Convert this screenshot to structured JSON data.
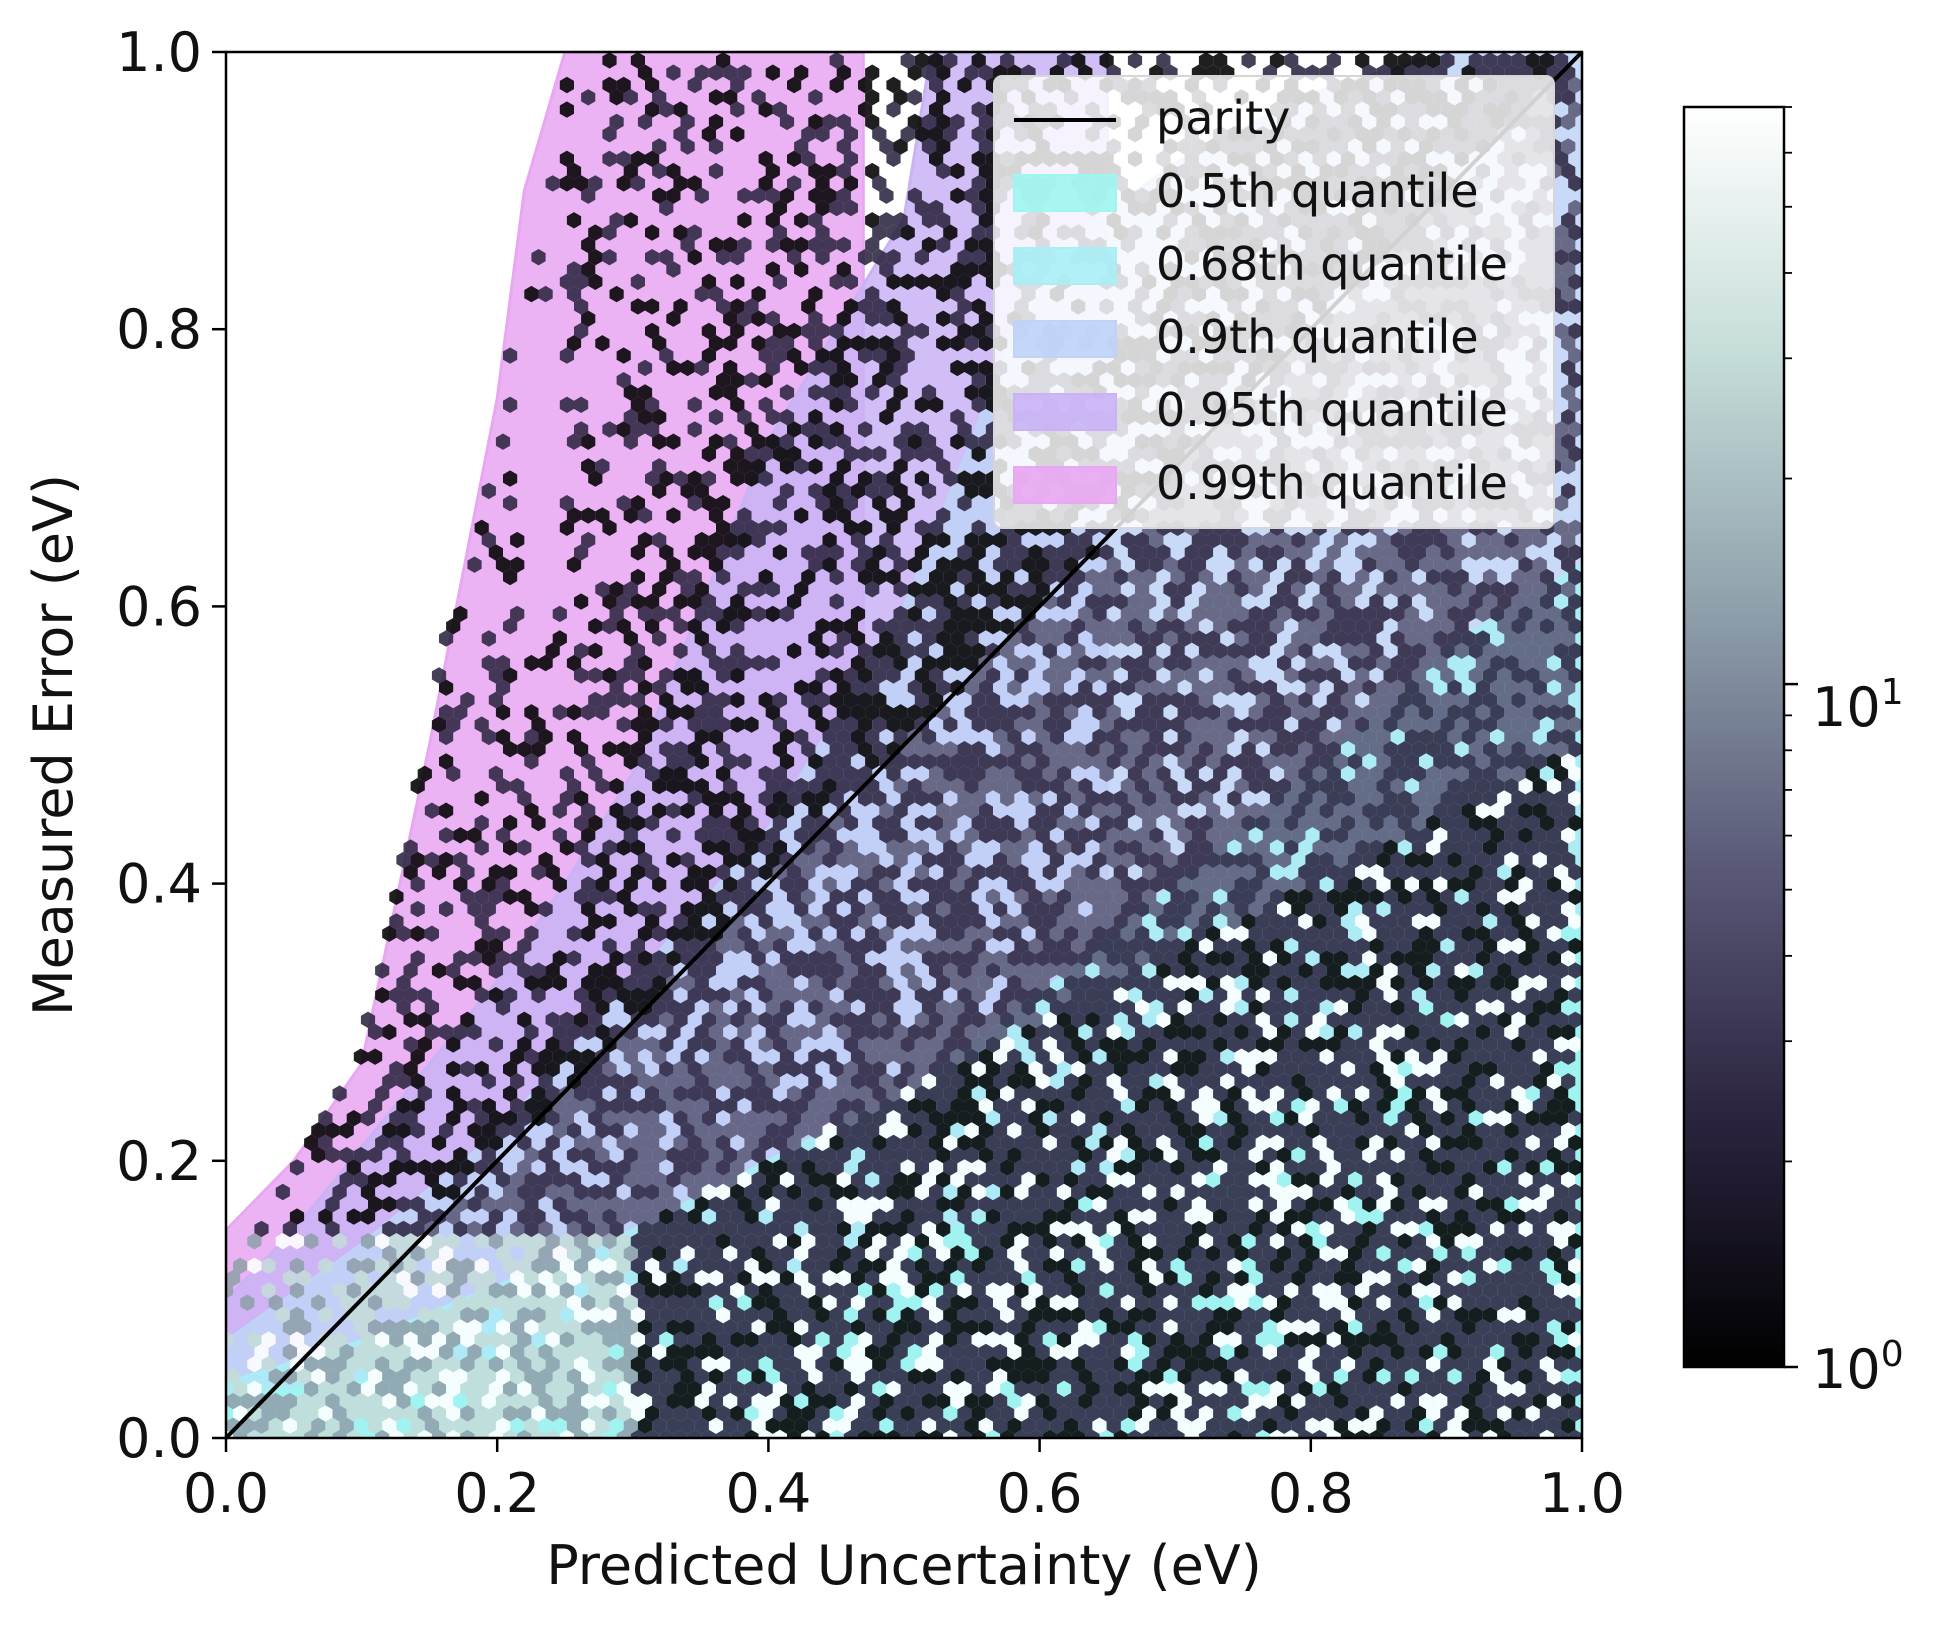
{
  "chart_data": {
    "type": "hexbin",
    "title": "",
    "xlabel": "Predicted Uncertainty (eV)",
    "ylabel": "Measured Error (eV)",
    "xlim": [
      0.0,
      1.0
    ],
    "ylim": [
      0.0,
      1.0
    ],
    "x_ticks": [
      "0.0",
      "0.2",
      "0.4",
      "0.6",
      "0.8",
      "1.0"
    ],
    "y_ticks": [
      "0.0",
      "0.2",
      "0.4",
      "0.6",
      "0.8",
      "1.0"
    ],
    "grid": false,
    "legend_position": "top-right",
    "parity": {
      "label": "parity",
      "color": "#000000",
      "x": [
        0.0,
        1.0
      ],
      "y": [
        0.0,
        1.0
      ]
    },
    "quantile_bands": [
      {
        "label": "0.99th quantile",
        "color": "#e9a6f2",
        "x": [
          0.0,
          0.05,
          0.1,
          0.15,
          0.2,
          0.22,
          0.25,
          0.3,
          0.35,
          0.4,
          0.45,
          0.47
        ],
        "y": [
          0.15,
          0.2,
          0.27,
          0.5,
          0.75,
          0.9,
          1.0,
          1.0,
          1.0,
          1.0,
          1.0,
          1.0
        ]
      },
      {
        "label": "0.95th quantile",
        "color": "#c9b3f5",
        "x": [
          0.0,
          0.05,
          0.1,
          0.15,
          0.2,
          0.25,
          0.3,
          0.35,
          0.4,
          0.45,
          0.5,
          0.52,
          0.55,
          0.6,
          0.65
        ],
        "y": [
          0.1,
          0.15,
          0.21,
          0.27,
          0.33,
          0.4,
          0.48,
          0.6,
          0.72,
          0.8,
          0.88,
          1.0,
          1.0,
          1.0,
          1.0
        ]
      },
      {
        "label": "0.9th quantile",
        "color": "#bfd3f7",
        "x": [
          0.0,
          0.1,
          0.2,
          0.3,
          0.4,
          0.5,
          0.55,
          0.6,
          0.7,
          0.8,
          0.9,
          1.0
        ],
        "y": [
          0.07,
          0.14,
          0.22,
          0.33,
          0.44,
          0.6,
          0.72,
          0.85,
          0.92,
          0.97,
          1.0,
          1.0
        ]
      },
      {
        "label": "0.68th quantile",
        "color": "#a9eef5",
        "x": [
          0.0,
          0.1,
          0.2,
          0.3,
          0.4,
          0.5,
          0.6,
          0.7,
          0.8,
          0.9,
          1.0
        ],
        "y": [
          0.04,
          0.07,
          0.11,
          0.15,
          0.2,
          0.25,
          0.32,
          0.4,
          0.48,
          0.57,
          0.63
        ]
      },
      {
        "label": "0.5th quantile",
        "color": "#9ff5f0",
        "x": [
          0.0,
          0.1,
          0.2,
          0.3,
          0.4,
          0.5,
          0.6,
          0.7,
          0.8,
          0.9,
          1.0
        ],
        "y": [
          0.03,
          0.04,
          0.06,
          0.08,
          0.11,
          0.14,
          0.17,
          0.21,
          0.26,
          0.32,
          0.38
        ]
      }
    ],
    "legend_order": [
      "0.5th quantile",
      "0.68th quantile",
      "0.9th quantile",
      "0.95th quantile",
      "0.99th quantile"
    ],
    "hexbin_regions": [
      {
        "label": "sparse-left",
        "x_min_frac": 0.0,
        "x_max_frac": 0.35,
        "count": "low"
      },
      {
        "label": "core",
        "x_min_frac": 0.35,
        "x_max_frac": 1.0,
        "count": "high"
      }
    ],
    "colorbar": {
      "scale": "log",
      "range": [
        1,
        70
      ],
      "tick_base": "10",
      "tick_exponents": [
        "0",
        "1"
      ],
      "colors": [
        "#000000",
        "#2b2440",
        "#5a5a78",
        "#8e9fab",
        "#c4dcd8",
        "#ffffff"
      ]
    }
  }
}
